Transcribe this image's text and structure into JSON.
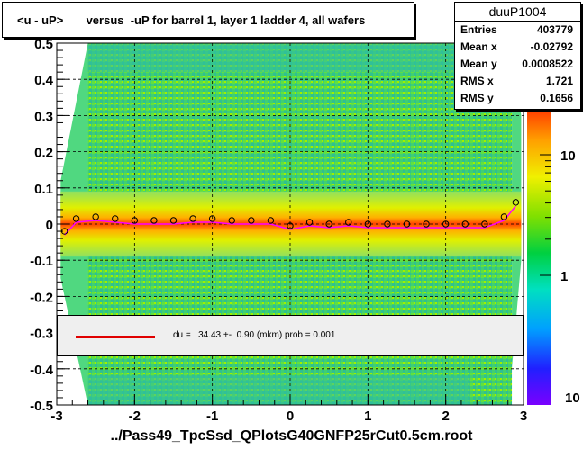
{
  "title": "<u - uP>       versus  -uP for barrel 1, layer 1 ladder 4, all wafers",
  "stats": {
    "name": "duuP1004",
    "rows": [
      {
        "label": "Entries",
        "value": "403779"
      },
      {
        "label": "Mean x",
        "value": "-0.02792"
      },
      {
        "label": "Mean y",
        "value": "0.0008522"
      },
      {
        "label": "RMS x",
        "value": "1.721"
      },
      {
        "label": "RMS y",
        "value": "0.1656"
      }
    ]
  },
  "fit_legend": {
    "text": "du =   34.43 +-  0.90 (mkm) prob = 0.001",
    "line_color": "#e00000"
  },
  "footer": "../Pass49_TpcSsd_QPlotsG40GNFP25rCut0.5cm.root",
  "chart_data": {
    "type": "heatmap",
    "xlim": [
      -3,
      3
    ],
    "ylim": [
      -0.5,
      0.5
    ],
    "x_ticks": [
      "-3",
      "-2",
      "-1",
      "0",
      "1",
      "2",
      "3"
    ],
    "y_ticks": [
      "-0.5",
      "-0.4",
      "-0.3",
      "-0.2",
      "-0.1",
      "0",
      "0.1",
      "0.2",
      "0.3",
      "0.4",
      "0.5"
    ],
    "grid": true,
    "colorbar": {
      "scale": "log",
      "tick_labels": [
        "1",
        "10"
      ]
    },
    "profile": {
      "x": [
        -2.9,
        -2.75,
        -2.5,
        -2.25,
        -2.0,
        -1.75,
        -1.5,
        -1.25,
        -1.0,
        -0.75,
        -0.5,
        -0.25,
        0.0,
        0.25,
        0.5,
        0.75,
        1.0,
        1.25,
        1.5,
        1.75,
        2.0,
        2.25,
        2.5,
        2.75,
        2.9
      ],
      "y": [
        -0.02,
        0.015,
        0.02,
        0.015,
        0.01,
        0.01,
        0.01,
        0.015,
        0.015,
        0.01,
        0.01,
        0.01,
        -0.005,
        0.005,
        0.0,
        0.005,
        0.0,
        0.0,
        0.0,
        0.0,
        0.0,
        0.0,
        0.0,
        0.02,
        0.06
      ]
    }
  },
  "colors": {
    "frame": "#000000",
    "background": "#ffffff",
    "fit_line": "#e00000",
    "profile_marker": "#000000",
    "inner_profile": "#ff00ff"
  }
}
